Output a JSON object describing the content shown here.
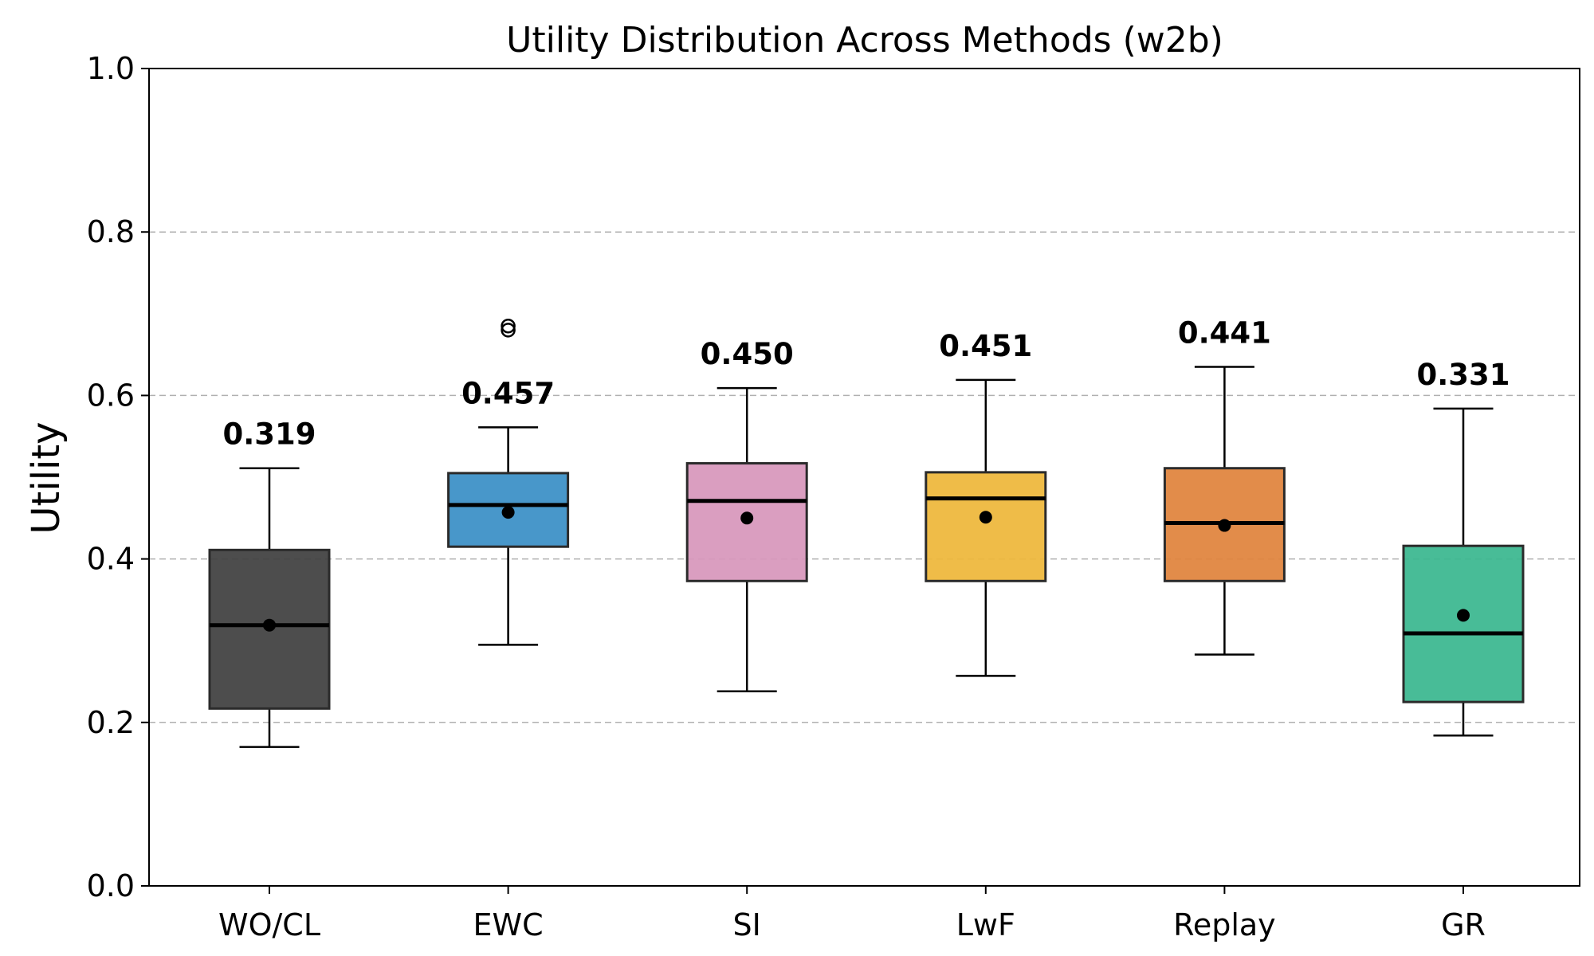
{
  "chart_data": {
    "type": "box",
    "title": "Utility Distribution Across Methods (w2b)",
    "xlabel": "",
    "ylabel": "Utility",
    "ylim": [
      0.0,
      1.0
    ],
    "yticks": [
      "0.0",
      "0.2",
      "0.4",
      "0.6",
      "0.8",
      "1.0"
    ],
    "ytick_values": [
      0.0,
      0.2,
      0.4,
      0.6,
      0.8,
      1.0
    ],
    "grid": "y-dashed",
    "categories": [
      "WO/CL",
      "EWC",
      "SI",
      "LwF",
      "Replay",
      "GR"
    ],
    "series": [
      {
        "category": "WO/CL",
        "whisker_low": 0.17,
        "q1": 0.217,
        "median": 0.319,
        "q3": 0.411,
        "whisker_high": 0.511,
        "mean": 0.319,
        "mean_label": "0.319",
        "outliers": [],
        "color": "#404040"
      },
      {
        "category": "EWC",
        "whisker_low": 0.295,
        "q1": 0.415,
        "median": 0.466,
        "q3": 0.505,
        "whisker_high": 0.561,
        "mean": 0.457,
        "mean_label": "0.457",
        "outliers": [
          0.68,
          0.685
        ],
        "color": "#3a8fc6"
      },
      {
        "category": "SI",
        "whisker_low": 0.238,
        "q1": 0.373,
        "median": 0.471,
        "q3": 0.517,
        "whisker_high": 0.609,
        "mean": 0.45,
        "mean_label": "0.450",
        "outliers": [],
        "color": "#d797bb"
      },
      {
        "category": "LwF",
        "whisker_low": 0.257,
        "q1": 0.373,
        "median": 0.474,
        "q3": 0.506,
        "whisker_high": 0.619,
        "mean": 0.451,
        "mean_label": "0.451",
        "outliers": [],
        "color": "#eeb73a"
      },
      {
        "category": "Replay",
        "whisker_low": 0.283,
        "q1": 0.373,
        "median": 0.444,
        "q3": 0.511,
        "whisker_high": 0.635,
        "mean": 0.441,
        "mean_label": "0.441",
        "outliers": [],
        "color": "#e0833c"
      },
      {
        "category": "GR",
        "whisker_low": 0.184,
        "q1": 0.225,
        "median": 0.309,
        "q3": 0.416,
        "whisker_high": 0.584,
        "mean": 0.331,
        "mean_label": "0.331",
        "outliers": [],
        "color": "#3ab78f"
      }
    ]
  }
}
